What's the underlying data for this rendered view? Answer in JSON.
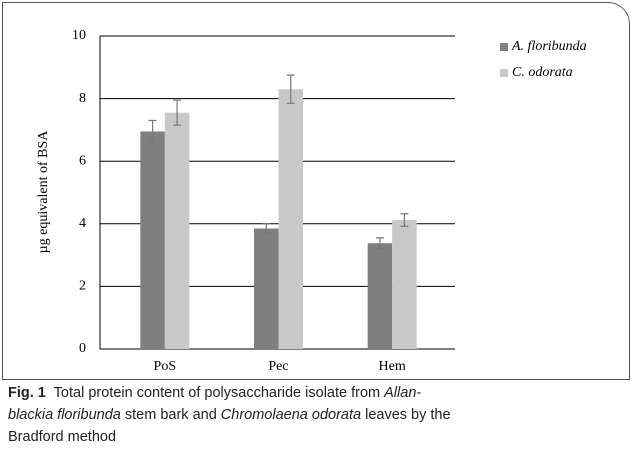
{
  "chart_data": {
    "type": "bar",
    "categories": [
      "PoS",
      "Pec",
      "Hem"
    ],
    "y_label": "µg equivalent of BSA",
    "series": [
      {
        "name": "A. floribunda",
        "color": "#7f7f7f",
        "values": [
          6.95,
          3.85,
          3.38
        ],
        "errors": [
          0.35,
          0.15,
          0.17
        ]
      },
      {
        "name": "C. odorata",
        "color": "#c8c8c8",
        "values": [
          7.55,
          8.3,
          4.12
        ],
        "errors": [
          0.4,
          0.45,
          0.2
        ]
      }
    ],
    "ylim": [
      0,
      10
    ],
    "yticks": [
      0,
      2,
      4,
      6,
      8,
      10
    ],
    "grid": true,
    "legend": "right",
    "caption": {
      "lines": [
        [
          {
            "text": "Fig. 1",
            "style": "bold"
          },
          {
            "text": "  Total protein content of polysaccharide isolate from ",
            "style": "normal"
          },
          {
            "text": "Allan-",
            "style": "italic"
          }
        ],
        [
          {
            "text": "blackia floribunda",
            "style": "italic"
          },
          {
            "text": " stem bark and ",
            "style": "normal"
          },
          {
            "text": "Chromolaena odorata",
            "style": "italic"
          },
          {
            "text": " leaves by the",
            "style": "normal"
          }
        ],
        [
          {
            "text": "Bradford method",
            "style": "normal"
          }
        ]
      ]
    }
  }
}
